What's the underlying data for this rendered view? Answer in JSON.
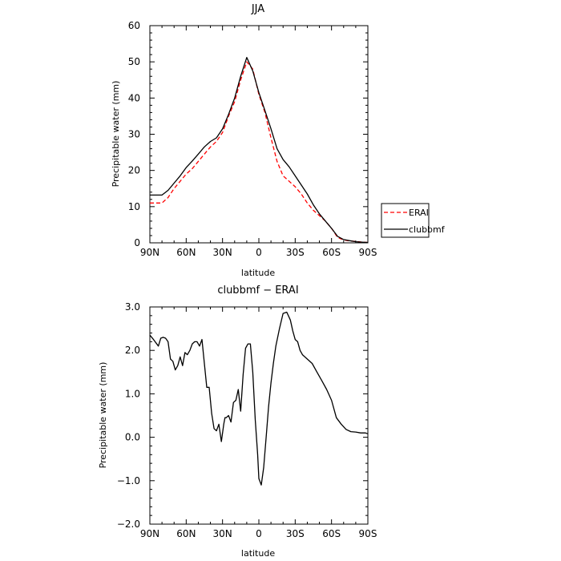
{
  "chart_data": [
    {
      "type": "line",
      "title": "JJA",
      "xlabel": "latitude",
      "ylabel": "Precipitable water (mm)",
      "xlim": [
        90,
        -90
      ],
      "ylim": [
        0,
        60
      ],
      "x_ticks": [
        90,
        60,
        30,
        0,
        -30,
        -60,
        -90
      ],
      "x_tick_labels": [
        "90N",
        "60N",
        "30N",
        "0",
        "30S",
        "60S",
        "90S"
      ],
      "y_ticks": [
        0,
        10,
        20,
        30,
        40,
        50,
        60
      ],
      "y_tick_labels": [
        "0",
        "10",
        "20",
        "30",
        "40",
        "50",
        "60"
      ],
      "grid": false,
      "legend_position": "outside-right",
      "series": [
        {
          "name": "ERAI",
          "color": "#ff0000",
          "dash": "dashed",
          "x": [
            90,
            85,
            80,
            75,
            70,
            65,
            60,
            55,
            50,
            45,
            40,
            35,
            30,
            25,
            20,
            15,
            10,
            5,
            0,
            -5,
            -10,
            -15,
            -20,
            -25,
            -30,
            -35,
            -40,
            -45,
            -50,
            -55,
            -60,
            -65,
            -70,
            -75,
            -80,
            -85,
            -90
          ],
          "y": [
            11.0,
            11.0,
            11.0,
            12.5,
            15.0,
            17.0,
            19.0,
            20.5,
            22.5,
            24.5,
            26.5,
            28.0,
            30.5,
            35.0,
            39.0,
            45.0,
            50.0,
            48.0,
            41.0,
            36.0,
            29.0,
            22.5,
            18.5,
            17.0,
            15.5,
            13.5,
            11.0,
            9.0,
            7.5,
            6.0,
            4.0,
            1.5,
            0.8,
            0.5,
            0.4,
            0.2,
            0.1
          ]
        },
        {
          "name": "clubbmf",
          "color": "#000000",
          "dash": "solid",
          "x": [
            90,
            85,
            80,
            75,
            70,
            65,
            60,
            55,
            50,
            45,
            40,
            35,
            30,
            25,
            20,
            15,
            10,
            5,
            0,
            -5,
            -10,
            -15,
            -20,
            -25,
            -30,
            -35,
            -40,
            -45,
            -50,
            -55,
            -60,
            -65,
            -70,
            -75,
            -80,
            -85,
            -90
          ],
          "y": [
            13.2,
            13.2,
            13.2,
            14.5,
            16.5,
            18.5,
            20.8,
            22.6,
            24.5,
            26.5,
            28.0,
            29.0,
            31.5,
            35.5,
            40.0,
            46.0,
            51.2,
            47.5,
            41.5,
            36.5,
            31.5,
            26.0,
            23.0,
            21.0,
            18.5,
            16.0,
            13.5,
            10.5,
            8.0,
            6.0,
            4.0,
            1.8,
            0.9,
            0.6,
            0.3,
            0.2,
            0.1
          ]
        }
      ]
    },
    {
      "type": "line",
      "title": "clubbmf  −  ERAI",
      "xlabel": "latitude",
      "ylabel": "Precipitable water (mm)",
      "xlim": [
        90,
        -90
      ],
      "ylim": [
        -2.0,
        3.0
      ],
      "x_ticks": [
        90,
        60,
        30,
        0,
        -30,
        -60,
        -90
      ],
      "x_tick_labels": [
        "90N",
        "60N",
        "30N",
        "0",
        "30S",
        "60S",
        "90S"
      ],
      "y_ticks": [
        -2.0,
        -1.0,
        0.0,
        1.0,
        2.0,
        3.0
      ],
      "y_tick_labels": [
        "−2.0",
        "−1.0",
        "0.0",
        "1.0",
        "2.0",
        "3.0"
      ],
      "grid": false,
      "series": [
        {
          "color": "#000000",
          "dash": "solid",
          "x": [
            90,
            87,
            83,
            81,
            79,
            77,
            75,
            73,
            71,
            69,
            67,
            65,
            63,
            61,
            59,
            57,
            55,
            53,
            51,
            49,
            47,
            45,
            43,
            41,
            39,
            37,
            35,
            33,
            31,
            29,
            28,
            27,
            25,
            23,
            21,
            19,
            17,
            15,
            13,
            11,
            9,
            7,
            5,
            3,
            2,
            1,
            0,
            -2,
            -4,
            -6,
            -8,
            -10,
            -12,
            -14,
            -17,
            -20,
            -23,
            -26,
            -28,
            -30,
            -32,
            -34,
            -36,
            -40,
            -44,
            -48,
            -52,
            -56,
            -60,
            -64,
            -68,
            -72,
            -76,
            -80,
            -84,
            -88,
            -90
          ],
          "y": [
            2.35,
            2.25,
            2.1,
            2.28,
            2.3,
            2.28,
            2.2,
            1.8,
            1.75,
            1.55,
            1.65,
            1.85,
            1.65,
            1.95,
            1.9,
            2.0,
            2.15,
            2.2,
            2.2,
            2.1,
            2.25,
            1.7,
            1.15,
            1.15,
            0.55,
            0.2,
            0.15,
            0.3,
            -0.1,
            0.3,
            0.45,
            0.45,
            0.5,
            0.35,
            0.8,
            0.85,
            1.1,
            0.6,
            1.45,
            2.05,
            2.15,
            2.15,
            1.5,
            0.4,
            0.0,
            -0.4,
            -0.95,
            -1.1,
            -0.7,
            0.0,
            0.7,
            1.25,
            1.7,
            2.1,
            2.5,
            2.85,
            2.88,
            2.7,
            2.45,
            2.25,
            2.2,
            2.0,
            1.9,
            1.8,
            1.7,
            1.5,
            1.3,
            1.1,
            0.85,
            0.45,
            0.3,
            0.18,
            0.13,
            0.12,
            0.1,
            0.1,
            0.08
          ]
        }
      ]
    }
  ]
}
